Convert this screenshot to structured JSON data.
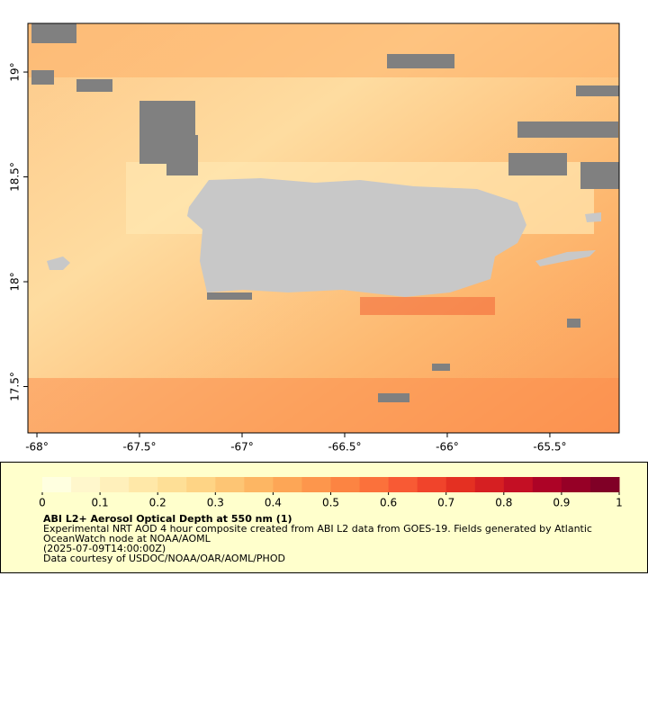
{
  "map": {
    "xlim": [
      -68.044,
      -65.162
    ],
    "ylim": [
      17.279,
      19.232
    ],
    "xticks": [
      {
        "value": -68,
        "label": "-68°"
      },
      {
        "value": -67.5,
        "label": "-67.5°"
      },
      {
        "value": -67,
        "label": "-67°"
      },
      {
        "value": -66.5,
        "label": "-66.5°"
      },
      {
        "value": -66,
        "label": "-66°"
      },
      {
        "value": -65.5,
        "label": "-65.5°"
      }
    ],
    "yticks": [
      {
        "value": 17.5,
        "label": "17.5°"
      },
      {
        "value": 18,
        "label": "18°"
      },
      {
        "value": 18.5,
        "label": "18.5°"
      },
      {
        "value": 19,
        "label": "19°"
      }
    ],
    "land_color": "#c8c8c8",
    "missing_color": "#808080"
  },
  "colorbar": {
    "lim": [
      0,
      1
    ],
    "ticks": [
      0,
      0.1,
      0.2,
      0.3,
      0.4,
      0.5,
      0.6,
      0.7,
      0.8,
      0.9,
      1
    ],
    "colors": [
      "#ffffe0",
      "#fff7cc",
      "#fff0bb",
      "#ffe8a8",
      "#fedf96",
      "#fed485",
      "#fdc574",
      "#fdb663",
      "#fda656",
      "#fd964c",
      "#fc8442",
      "#fb713b",
      "#f85a34",
      "#f0442b",
      "#e43022",
      "#d61f22",
      "#c40f24",
      "#ad0326",
      "#960026",
      "#800026"
    ]
  },
  "caption": {
    "title": "ABI L2+ Aerosol Optical Depth at 550 nm (1)",
    "lines": [
      "Experimental NRT AOD 4 hour composite created from ABI L2 data from GOES-19. Fields generated by Atlantic",
      "OceanWatch node at NOAA/AOML",
      "(2025-07-09T14:00:00Z)",
      "Data courtesy of USDOC/NOAA/OAR/AOML/PHOD"
    ]
  }
}
